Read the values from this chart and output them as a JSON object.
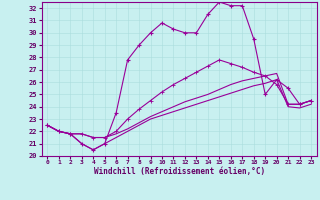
{
  "bg_color": "#c8f0f0",
  "line_color": "#990099",
  "xlabel": "Windchill (Refroidissement éolien,°C)",
  "xlim": [
    -0.5,
    23.5
  ],
  "ylim": [
    20,
    32.5
  ],
  "yticks": [
    20,
    21,
    22,
    23,
    24,
    25,
    26,
    27,
    28,
    29,
    30,
    31,
    32
  ],
  "xticks": [
    0,
    1,
    2,
    3,
    4,
    5,
    6,
    7,
    8,
    9,
    10,
    11,
    12,
    13,
    14,
    15,
    16,
    17,
    18,
    19,
    20,
    21,
    22,
    23
  ],
  "line1_x": [
    0,
    1,
    2,
    3,
    4,
    5,
    6,
    7,
    8,
    9,
    10,
    11,
    12,
    13,
    14,
    15,
    16,
    17,
    18,
    19,
    20,
    21,
    22,
    23
  ],
  "line1_y": [
    22.5,
    22.0,
    21.8,
    21.0,
    20.5,
    21.0,
    23.5,
    27.8,
    29.0,
    30.0,
    30.8,
    30.3,
    30.0,
    30.0,
    31.5,
    32.5,
    32.2,
    32.2,
    29.5,
    25.0,
    26.2,
    25.5,
    24.2,
    24.5
  ],
  "line2_x": [
    0,
    1,
    2,
    3,
    4,
    5,
    6,
    7,
    8,
    9,
    10,
    11,
    12,
    13,
    14,
    15,
    16,
    17,
    18,
    19,
    20,
    21,
    22,
    23
  ],
  "line2_y": [
    22.5,
    22.0,
    21.8,
    21.8,
    21.5,
    21.5,
    22.0,
    23.0,
    23.8,
    24.5,
    25.2,
    25.8,
    26.3,
    26.8,
    27.3,
    27.8,
    27.5,
    27.2,
    26.8,
    26.5,
    25.8,
    24.2,
    24.2,
    24.5
  ],
  "line3_x": [
    0,
    1,
    2,
    3,
    4,
    5,
    6,
    7,
    8,
    9,
    10,
    11,
    12,
    13,
    14,
    15,
    16,
    17,
    18,
    19,
    20,
    21,
    22,
    23
  ],
  "line3_y": [
    22.5,
    22.0,
    21.8,
    21.8,
    21.5,
    21.5,
    21.8,
    22.2,
    22.7,
    23.2,
    23.6,
    24.0,
    24.4,
    24.7,
    25.0,
    25.4,
    25.8,
    26.1,
    26.3,
    26.5,
    26.7,
    24.2,
    24.2,
    24.5
  ],
  "line4_x": [
    0,
    1,
    2,
    3,
    4,
    5,
    6,
    7,
    8,
    9,
    10,
    11,
    12,
    13,
    14,
    15,
    16,
    17,
    18,
    19,
    20,
    21,
    22,
    23
  ],
  "line4_y": [
    22.5,
    22.0,
    21.8,
    21.0,
    20.5,
    21.0,
    21.5,
    22.0,
    22.5,
    23.0,
    23.3,
    23.6,
    23.9,
    24.2,
    24.5,
    24.8,
    25.1,
    25.4,
    25.7,
    25.9,
    26.2,
    24.0,
    23.9,
    24.2
  ]
}
